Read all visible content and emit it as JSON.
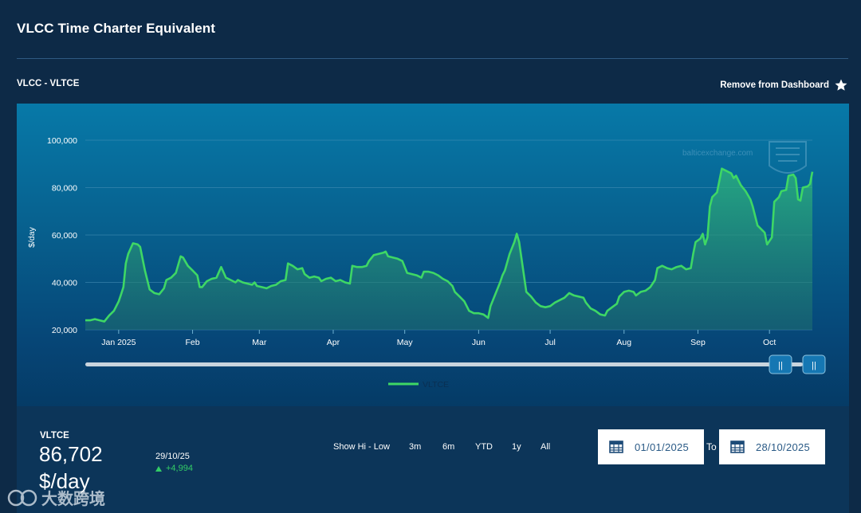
{
  "page": {
    "title": "VLCC Time Charter Equivalent"
  },
  "chart_header": {
    "label": "VLCC - VLTCE",
    "remove_label": "Remove from Dashboard"
  },
  "colors": {
    "line": "#3ed765",
    "accent_up": "#33cc66",
    "grid": "#4a93b8"
  },
  "chart_data": {
    "type": "area",
    "title": "VLCC - VLTCE",
    "ylabel": "$/day",
    "xlabel": "",
    "ylim": [
      20000,
      100000
    ],
    "y_ticks": [
      20000,
      40000,
      60000,
      80000,
      100000
    ],
    "y_tick_labels": [
      "20,000",
      "40,000",
      "60,000",
      "80,000",
      "100,000"
    ],
    "month_ticks": [
      {
        "label": "Jan 2025",
        "day": 14
      },
      {
        "label": "Feb",
        "day": 45
      },
      {
        "label": "Mar",
        "day": 73
      },
      {
        "label": "Apr",
        "day": 104
      },
      {
        "label": "May",
        "day": 134
      },
      {
        "label": "Jun",
        "day": 165
      },
      {
        "label": "Jul",
        "day": 195
      },
      {
        "label": "Aug",
        "day": 226
      },
      {
        "label": "Sep",
        "day": 257
      },
      {
        "label": "Oct",
        "day": 287
      }
    ],
    "x_range_days": [
      0,
      301
    ],
    "legend": [
      {
        "name": "VLTCE"
      }
    ],
    "watermark_text": "balticexchange.com",
    "series": [
      {
        "name": "VLTCE",
        "points": [
          [
            0,
            24000
          ],
          [
            2,
            24000
          ],
          [
            4,
            24500
          ],
          [
            6,
            24000
          ],
          [
            8,
            23500
          ],
          [
            10,
            26000
          ],
          [
            12,
            28000
          ],
          [
            14,
            32000
          ],
          [
            15,
            35000
          ],
          [
            16,
            38000
          ],
          [
            17,
            48000
          ],
          [
            18,
            52000
          ],
          [
            20,
            56500
          ],
          [
            22,
            56000
          ],
          [
            23,
            55000
          ],
          [
            25,
            45000
          ],
          [
            27,
            37000
          ],
          [
            29,
            35500
          ],
          [
            31,
            35000
          ],
          [
            33,
            37500
          ],
          [
            34,
            41000
          ],
          [
            36,
            42000
          ],
          [
            38,
            44000
          ],
          [
            40,
            51000
          ],
          [
            41,
            50500
          ],
          [
            43,
            47000
          ],
          [
            45,
            45000
          ],
          [
            47,
            43000
          ],
          [
            48,
            38000
          ],
          [
            49,
            38000
          ],
          [
            51,
            40500
          ],
          [
            53,
            41500
          ],
          [
            55,
            42000
          ],
          [
            57,
            46500
          ],
          [
            59,
            42000
          ],
          [
            61,
            41000
          ],
          [
            63,
            40000
          ],
          [
            64,
            41000
          ],
          [
            66,
            40000
          ],
          [
            68,
            39500
          ],
          [
            70,
            39000
          ],
          [
            71,
            40000
          ],
          [
            72,
            38500
          ],
          [
            74,
            38000
          ],
          [
            76,
            37500
          ],
          [
            78,
            38500
          ],
          [
            80,
            39000
          ],
          [
            82,
            40500
          ],
          [
            84,
            41000
          ],
          [
            85,
            48000
          ],
          [
            87,
            47000
          ],
          [
            89,
            45500
          ],
          [
            91,
            46000
          ],
          [
            92,
            43500
          ],
          [
            94,
            42000
          ],
          [
            96,
            42500
          ],
          [
            98,
            42000
          ],
          [
            99,
            40500
          ],
          [
            101,
            41500
          ],
          [
            103,
            42000
          ],
          [
            105,
            40500
          ],
          [
            107,
            41000
          ],
          [
            109,
            40000
          ],
          [
            111,
            39500
          ],
          [
            112,
            47000
          ],
          [
            114,
            46500
          ],
          [
            116,
            46500
          ],
          [
            118,
            47000
          ],
          [
            119,
            49000
          ],
          [
            121,
            51500
          ],
          [
            123,
            52000
          ],
          [
            125,
            52500
          ],
          [
            126,
            53000
          ],
          [
            127,
            51000
          ],
          [
            129,
            50500
          ],
          [
            131,
            50000
          ],
          [
            133,
            49000
          ],
          [
            135,
            44000
          ],
          [
            137,
            43500
          ],
          [
            139,
            43000
          ],
          [
            141,
            42000
          ],
          [
            142,
            44500
          ],
          [
            144,
            44500
          ],
          [
            146,
            44000
          ],
          [
            148,
            43000
          ],
          [
            150,
            41500
          ],
          [
            152,
            40500
          ],
          [
            154,
            38500
          ],
          [
            155,
            36000
          ],
          [
            157,
            34000
          ],
          [
            159,
            32000
          ],
          [
            161,
            28000
          ],
          [
            163,
            27000
          ],
          [
            165,
            27000
          ],
          [
            167,
            26500
          ],
          [
            169,
            25000
          ],
          [
            170,
            30000
          ],
          [
            172,
            35000
          ],
          [
            174,
            40000
          ],
          [
            175,
            43000
          ],
          [
            176,
            45000
          ],
          [
            178,
            52000
          ],
          [
            180,
            57000
          ],
          [
            181,
            60500
          ],
          [
            182,
            57000
          ],
          [
            183,
            50000
          ],
          [
            185,
            36000
          ],
          [
            187,
            34000
          ],
          [
            189,
            31500
          ],
          [
            191,
            30000
          ],
          [
            193,
            29500
          ],
          [
            195,
            30000
          ],
          [
            197,
            31500
          ],
          [
            199,
            32500
          ],
          [
            201,
            33500
          ],
          [
            203,
            35500
          ],
          [
            205,
            34500
          ],
          [
            207,
            34000
          ],
          [
            209,
            33500
          ],
          [
            210,
            31500
          ],
          [
            212,
            29000
          ],
          [
            214,
            28000
          ],
          [
            216,
            26500
          ],
          [
            218,
            26000
          ],
          [
            219,
            28000
          ],
          [
            221,
            29500
          ],
          [
            223,
            31000
          ],
          [
            224,
            34000
          ],
          [
            226,
            36000
          ],
          [
            228,
            36500
          ],
          [
            230,
            36000
          ],
          [
            231,
            34500
          ],
          [
            233,
            36000
          ],
          [
            235,
            36500
          ],
          [
            237,
            38000
          ],
          [
            239,
            41000
          ],
          [
            240,
            46000
          ],
          [
            242,
            47000
          ],
          [
            244,
            46000
          ],
          [
            246,
            45500
          ],
          [
            248,
            46500
          ],
          [
            250,
            47000
          ],
          [
            252,
            45500
          ],
          [
            254,
            46000
          ],
          [
            255,
            52000
          ],
          [
            256,
            57000
          ],
          [
            258,
            58500
          ],
          [
            259,
            60500
          ],
          [
            260,
            56000
          ],
          [
            261,
            59000
          ],
          [
            262,
            72000
          ],
          [
            263,
            76000
          ],
          [
            265,
            78000
          ],
          [
            267,
            88000
          ],
          [
            269,
            87000
          ],
          [
            271,
            86000
          ],
          [
            272,
            84000
          ],
          [
            273,
            85000
          ],
          [
            275,
            81000
          ],
          [
            277,
            78500
          ],
          [
            279,
            75000
          ],
          [
            280,
            72000
          ],
          [
            282,
            64000
          ],
          [
            284,
            62000
          ],
          [
            285,
            61000
          ],
          [
            286,
            56000
          ],
          [
            288,
            59000
          ],
          [
            289,
            74000
          ],
          [
            291,
            76000
          ],
          [
            292,
            78500
          ],
          [
            294,
            79000
          ],
          [
            295,
            85000
          ],
          [
            297,
            85500
          ],
          [
            298,
            84000
          ],
          [
            299,
            75000
          ],
          [
            300,
            74500
          ],
          [
            301,
            80000
          ],
          [
            303,
            80500
          ],
          [
            304,
            81500
          ],
          [
            305,
            86700
          ]
        ]
      }
    ]
  },
  "navigator": {
    "range_handle_left": "||",
    "range_handle_right": "||"
  },
  "summary": {
    "name": "VLTCE",
    "value": "86,702",
    "unit": "$/day",
    "date": "29/10/25",
    "change": "+4,994"
  },
  "ranges": [
    {
      "label": "Show Hi - Low"
    },
    {
      "label": "3m"
    },
    {
      "label": "6m"
    },
    {
      "label": "YTD"
    },
    {
      "label": "1y"
    },
    {
      "label": "All"
    }
  ],
  "date_range": {
    "from": "01/01/2025",
    "to_label": "To",
    "to": "28/10/2025"
  },
  "overlay_watermark": "大数跨境"
}
